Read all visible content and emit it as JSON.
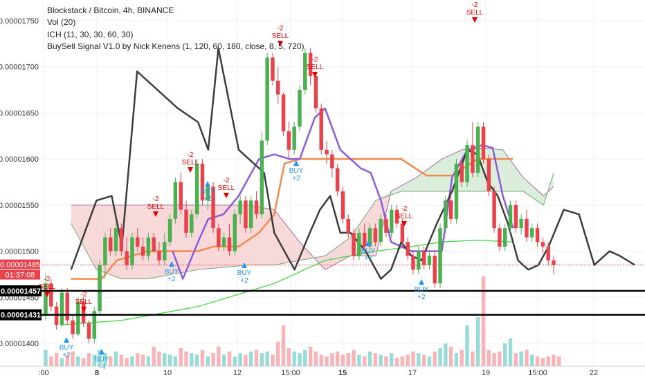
{
  "legend": {
    "title": "Blockstack / Bitcoin, 4h, BINANCE",
    "vol": "Vol (20)",
    "ich": "ICH (11, 30, 30, 60, 30)",
    "buysell": "BuySell Signal V1.0 by Nick Kenens (1, 120, 60, 180, close, 8, 5, 720)"
  },
  "colors": {
    "up": "#4caf50",
    "down": "#e8424c",
    "lagging": "#3c3c3c",
    "conversion": "#8e5ad8",
    "base": "#f28a4c",
    "ema": "#4cd94c",
    "cloud_bear": "#f6cccc",
    "cloud_bull": "#cfe8cf",
    "buy": "#2196f3",
    "sell": "#e30000"
  },
  "price_axis": {
    "ticks": [
      "0.00001750",
      "0.00001700",
      "0.00001650",
      "0.00001600",
      "0.00001550",
      "0.00001500",
      "0.00001450",
      "0.00001400"
    ],
    "last_price": "0.00001485",
    "countdown": "01:37:08",
    "level1": "0.00001457",
    "level2": "0.00001431"
  },
  "time_axis": {
    "ticks": [
      {
        "label": ":00",
        "bold": false
      },
      {
        "label": "8",
        "bold": true
      },
      {
        "label": "10",
        "bold": false
      },
      {
        "label": "12",
        "bold": false
      },
      {
        "label": "15:00",
        "bold": false
      },
      {
        "label": "15",
        "bold": true
      },
      {
        "label": "17",
        "bold": false
      },
      {
        "label": "19",
        "bold": false
      },
      {
        "label": "15:00",
        "bold": false
      },
      {
        "label": "22",
        "bold": false
      }
    ]
  },
  "signals": [
    {
      "type": "sell",
      "count": "-2",
      "label": "SELL"
    },
    {
      "type": "sell",
      "count": "-2",
      "label": "SELL"
    },
    {
      "type": "sell",
      "count": "-2",
      "label": "SELL"
    },
    {
      "type": "sell",
      "count": "-2",
      "label": "SELL"
    },
    {
      "type": "sell",
      "count": "-2",
      "label": "SELL"
    },
    {
      "type": "sell",
      "count": "-2",
      "label": "SELL"
    },
    {
      "type": "sell",
      "count": "-2",
      "label": "SELL"
    },
    {
      "type": "sell",
      "count": "-2",
      "label": "SELL"
    },
    {
      "type": "sell",
      "count": "-2",
      "label": "SELL"
    },
    {
      "type": "buy",
      "count": "+2",
      "label": "BUY"
    },
    {
      "type": "buy",
      "count": "+2",
      "label": "BUY"
    },
    {
      "type": "buy",
      "count": "+4",
      "label": "BUY"
    },
    {
      "type": "buy",
      "count": "+2",
      "label": "BUY"
    },
    {
      "type": "buy",
      "count": "+2",
      "label": "BUY"
    },
    {
      "type": "buy",
      "count": "+2",
      "label": "BUY"
    },
    {
      "type": "buy",
      "count": "+2",
      "label": "BUY"
    },
    {
      "type": "buy",
      "count": "+2",
      "label": "BUY"
    }
  ],
  "chart_data": {
    "type": "candlestick",
    "title": "Blockstack / Bitcoin, 4h, BINANCE",
    "ylim": [
      1.38e-05,
      1.762e-05
    ],
    "candles": [
      [
        1.43e-05,
        1.475e-05,
        1.425e-05,
        1.465e-05
      ],
      [
        1.465e-05,
        1.47e-05,
        1.435e-05,
        1.44e-05
      ],
      [
        1.44e-05,
        1.445e-05,
        1.415e-05,
        1.42e-05
      ],
      [
        1.42e-05,
        1.46e-05,
        1.418e-05,
        1.455e-05
      ],
      [
        1.455e-05,
        1.46e-05,
        1.42e-05,
        1.425e-05
      ],
      [
        1.425e-05,
        1.43e-05,
        1.405e-05,
        1.41e-05
      ],
      [
        1.41e-05,
        1.45e-05,
        1.408e-05,
        1.445e-05
      ],
      [
        1.445e-05,
        1.45e-05,
        1.418e-05,
        1.422e-05
      ],
      [
        1.422e-05,
        1.425e-05,
        1.4e-05,
        1.405e-05
      ],
      [
        1.405e-05,
        1.44e-05,
        1.4e-05,
        1.435e-05
      ],
      [
        1.435e-05,
        1.49e-05,
        1.43e-05,
        1.485e-05
      ],
      [
        1.485e-05,
        1.52e-05,
        1.47e-05,
        1.515e-05
      ],
      [
        1.515e-05,
        1.525e-05,
        1.495e-05,
        1.5e-05
      ],
      [
        1.5e-05,
        1.53e-05,
        1.495e-05,
        1.525e-05
      ],
      [
        1.525e-05,
        1.53e-05,
        1.495e-05,
        1.5e-05
      ],
      [
        1.5e-05,
        1.515e-05,
        1.48e-05,
        1.485e-05
      ],
      [
        1.485e-05,
        1.52e-05,
        1.48e-05,
        1.515e-05
      ],
      [
        1.515e-05,
        1.525e-05,
        1.5e-05,
        1.505e-05
      ],
      [
        1.505e-05,
        1.515e-05,
        1.49e-05,
        1.495e-05
      ],
      [
        1.495e-05,
        1.52e-05,
        1.49e-05,
        1.515e-05
      ],
      [
        1.515e-05,
        1.52e-05,
        1.498e-05,
        1.5e-05
      ],
      [
        1.5e-05,
        1.51e-05,
        1.485e-05,
        1.49e-05
      ],
      [
        1.49e-05,
        1.52e-05,
        1.485e-05,
        1.51e-05
      ],
      [
        1.51e-05,
        1.54e-05,
        1.505e-05,
        1.535e-05
      ],
      [
        1.535e-05,
        1.58e-05,
        1.53e-05,
        1.575e-05
      ],
      [
        1.575e-05,
        1.585e-05,
        1.54e-05,
        1.545e-05
      ],
      [
        1.545e-05,
        1.555e-05,
        1.515e-05,
        1.52e-05
      ],
      [
        1.52e-05,
        1.545e-05,
        1.515e-05,
        1.54e-05
      ],
      [
        1.54e-05,
        1.6e-05,
        1.535e-05,
        1.595e-05
      ],
      [
        1.595e-05,
        1.6e-05,
        1.55e-05,
        1.555e-05
      ],
      [
        1.555e-05,
        1.575e-05,
        1.545e-05,
        1.57e-05
      ],
      [
        1.57e-05,
        1.575e-05,
        1.52e-05,
        1.525e-05
      ],
      [
        1.525e-05,
        1.53e-05,
        1.5e-05,
        1.505e-05
      ],
      [
        1.505e-05,
        1.52e-05,
        1.5e-05,
        1.515e-05
      ],
      [
        1.515e-05,
        1.53e-05,
        1.495e-05,
        1.5e-05
      ],
      [
        1.5e-05,
        1.545e-05,
        1.495e-05,
        1.54e-05
      ],
      [
        1.54e-05,
        1.56e-05,
        1.53e-05,
        1.555e-05
      ],
      [
        1.555e-05,
        1.56e-05,
        1.52e-05,
        1.525e-05
      ],
      [
        1.525e-05,
        1.56e-05,
        1.52e-05,
        1.555e-05
      ],
      [
        1.555e-05,
        1.565e-05,
        1.535e-05,
        1.54e-05
      ],
      [
        1.54e-05,
        1.63e-05,
        1.535e-05,
        1.62e-05
      ],
      [
        1.62e-05,
        1.715e-05,
        1.615e-05,
        1.71e-05
      ],
      [
        1.71e-05,
        1.715e-05,
        1.68e-05,
        1.685e-05
      ],
      [
        1.685e-05,
        1.7e-05,
        1.66e-05,
        1.67e-05
      ],
      [
        1.67e-05,
        1.672e-05,
        1.625e-05,
        1.63e-05
      ],
      [
        1.63e-05,
        1.64e-05,
        1.6e-05,
        1.61e-05
      ],
      [
        1.61e-05,
        1.64e-05,
        1.605e-05,
        1.635e-05
      ],
      [
        1.635e-05,
        1.68e-05,
        1.63e-05,
        1.675e-05
      ],
      [
        1.675e-05,
        1.72e-05,
        1.67e-05,
        1.715e-05
      ],
      [
        1.715e-05,
        1.72e-05,
        1.68e-05,
        1.69e-05
      ],
      [
        1.69e-05,
        1.695e-05,
        1.65e-05,
        1.655e-05
      ],
      [
        1.655e-05,
        1.66e-05,
        1.605e-05,
        1.61e-05
      ],
      [
        1.61e-05,
        1.62e-05,
        1.595e-05,
        1.605e-05
      ],
      [
        1.605e-05,
        1.61e-05,
        1.58e-05,
        1.59e-05
      ],
      [
        1.59e-05,
        1.595e-05,
        1.56e-05,
        1.565e-05
      ],
      [
        1.565e-05,
        1.57e-05,
        1.53e-05,
        1.535e-05
      ],
      [
        1.535e-05,
        1.54e-05,
        1.515e-05,
        1.52e-05
      ],
      [
        1.52e-05,
        1.525e-05,
        1.49e-05,
        1.495e-05
      ],
      [
        1.495e-05,
        1.525e-05,
        1.49e-05,
        1.52e-05
      ],
      [
        1.52e-05,
        1.53e-05,
        1.5e-05,
        1.505e-05
      ],
      [
        1.505e-05,
        1.53e-05,
        1.5e-05,
        1.525e-05
      ],
      [
        1.525e-05,
        1.53e-05,
        1.505e-05,
        1.51e-05
      ],
      [
        1.51e-05,
        1.54e-05,
        1.505e-05,
        1.535e-05
      ],
      [
        1.535e-05,
        1.54e-05,
        1.515e-05,
        1.52e-05
      ],
      [
        1.52e-05,
        1.55e-05,
        1.515e-05,
        1.545e-05
      ],
      [
        1.545e-05,
        1.55e-05,
        1.525e-05,
        1.53e-05
      ],
      [
        1.53e-05,
        1.535e-05,
        1.505e-05,
        1.51e-05
      ],
      [
        1.51e-05,
        1.515e-05,
        1.49e-05,
        1.495e-05
      ],
      [
        1.495e-05,
        1.5e-05,
        1.475e-05,
        1.48e-05
      ],
      [
        1.48e-05,
        1.505e-05,
        1.475e-05,
        1.5e-05
      ],
      [
        1.5e-05,
        1.505e-05,
        1.48e-05,
        1.485e-05
      ],
      [
        1.485e-05,
        1.5e-05,
        1.48e-05,
        1.495e-05
      ],
      [
        1.495e-05,
        1.5e-05,
        1.46e-05,
        1.465e-05
      ],
      [
        1.465e-05,
        1.53e-05,
        1.46e-05,
        1.525e-05
      ],
      [
        1.525e-05,
        1.56e-05,
        1.52e-05,
        1.555e-05
      ],
      [
        1.555e-05,
        1.56e-05,
        1.53e-05,
        1.535e-05
      ],
      [
        1.535e-05,
        1.6e-05,
        1.53e-05,
        1.595e-05
      ],
      [
        1.595e-05,
        1.6e-05,
        1.57e-05,
        1.575e-05
      ],
      [
        1.575e-05,
        1.62e-05,
        1.57e-05,
        1.615e-05
      ],
      [
        1.615e-05,
        1.64e-05,
        1.58e-05,
        1.585e-05
      ],
      [
        1.585e-05,
        1.64e-05,
        1.58e-05,
        1.635e-05
      ],
      [
        1.635e-05,
        1.64e-05,
        1.595e-05,
        1.6e-05
      ],
      [
        1.6e-05,
        1.605e-05,
        1.56e-05,
        1.565e-05
      ],
      [
        1.565e-05,
        1.57e-05,
        1.52e-05,
        1.525e-05
      ],
      [
        1.525e-05,
        1.53e-05,
        1.5e-05,
        1.505e-05
      ],
      [
        1.505e-05,
        1.53e-05,
        1.5e-05,
        1.525e-05
      ],
      [
        1.525e-05,
        1.555e-05,
        1.52e-05,
        1.55e-05
      ],
      [
        1.55e-05,
        1.555e-05,
        1.52e-05,
        1.525e-05
      ],
      [
        1.525e-05,
        1.54e-05,
        1.518e-05,
        1.535e-05
      ],
      [
        1.535e-05,
        1.545e-05,
        1.51e-05,
        1.515e-05
      ],
      [
        1.515e-05,
        1.53e-05,
        1.51e-05,
        1.525e-05
      ],
      [
        1.525e-05,
        1.53e-05,
        1.505e-05,
        1.51e-05
      ],
      [
        1.51e-05,
        1.515e-05,
        1.498e-05,
        1.505e-05
      ],
      [
        1.505e-05,
        1.51e-05,
        1.485e-05,
        1.49e-05
      ],
      [
        1.49e-05,
        1.495e-05,
        1.475e-05,
        1.485e-05
      ]
    ],
    "volume": [
      10,
      6,
      8,
      5,
      7,
      9,
      6,
      5,
      8,
      7,
      10,
      8,
      6,
      9,
      7,
      5,
      6,
      8,
      7,
      6,
      12,
      9,
      8,
      7,
      6,
      11,
      9,
      8,
      7,
      10,
      6,
      8,
      12,
      7,
      9,
      6,
      8,
      7,
      9,
      10,
      8,
      9,
      7,
      15,
      25,
      11,
      9,
      8,
      10,
      12,
      9,
      7,
      6,
      8,
      9,
      7,
      8,
      10,
      7,
      6,
      9,
      8,
      7,
      6,
      8,
      5,
      6,
      7,
      9,
      8,
      7,
      6,
      9,
      11,
      14,
      12,
      8,
      10,
      25,
      9,
      30,
      55,
      10,
      8,
      9,
      14,
      17,
      8,
      9,
      10,
      7,
      6,
      5,
      6,
      7,
      6
    ],
    "lagging_span": [
      [
        0.05,
        1.48e-05
      ],
      [
        0.1,
        1.555e-05
      ],
      [
        0.13,
        1.56e-05
      ],
      [
        0.15,
        1.505e-05
      ],
      [
        0.18,
        1.695e-05
      ],
      [
        0.22,
        1.675e-05
      ],
      [
        0.26,
        1.655e-05
      ],
      [
        0.3,
        1.64e-05
      ],
      [
        0.32,
        1.61e-05
      ],
      [
        0.34,
        1.72e-05
      ],
      [
        0.38,
        1.61e-05
      ],
      [
        0.41,
        1.595e-05
      ],
      [
        0.43,
        1.585e-05
      ],
      [
        0.45,
        1.52e-05
      ],
      [
        0.47,
        1.5e-05
      ],
      [
        0.49,
        1.48e-05
      ],
      [
        0.52,
        1.52e-05
      ],
      [
        0.54,
        1.545e-05
      ],
      [
        0.56,
        1.56e-05
      ],
      [
        0.58,
        1.52e-05
      ],
      [
        0.6,
        1.52e-05
      ],
      [
        0.63,
        1.5e-05
      ],
      [
        0.66,
        1.47e-05
      ],
      [
        0.68,
        1.48e-05
      ],
      [
        0.7,
        1.51e-05
      ],
      [
        0.72,
        1.495e-05
      ],
      [
        0.74,
        1.49e-05
      ],
      [
        0.77,
        1.53e-05
      ],
      [
        0.8,
        1.565e-05
      ],
      [
        0.83,
        1.61e-05
      ],
      [
        0.85,
        1.605e-05
      ],
      [
        0.87,
        1.575e-05
      ],
      [
        0.89,
        1.56e-05
      ],
      [
        0.91,
        1.53e-05
      ],
      [
        0.93,
        1.49e-05
      ],
      [
        0.95,
        1.48e-05
      ],
      [
        0.97,
        1.485e-05
      ],
      [
        0.99,
        1.505e-05
      ],
      [
        1.02,
        1.545e-05
      ],
      [
        1.05,
        1.54e-05
      ],
      [
        1.08,
        1.485e-05
      ],
      [
        1.11,
        1.5e-05
      ],
      [
        1.13,
        1.495e-05
      ],
      [
        1.16,
        1.485e-05
      ]
    ],
    "conversion_line": [
      [
        0.25,
        1.5e-05
      ],
      [
        0.27,
        1.47e-05
      ],
      [
        0.3,
        1.51e-05
      ],
      [
        0.32,
        1.535e-05
      ],
      [
        0.35,
        1.54e-05
      ],
      [
        0.38,
        1.56e-05
      ],
      [
        0.42,
        1.6e-05
      ],
      [
        0.45,
        1.605e-05
      ],
      [
        0.48,
        1.6e-05
      ],
      [
        0.5,
        1.6e-05
      ],
      [
        0.53,
        1.645e-05
      ],
      [
        0.55,
        1.655e-05
      ],
      [
        0.58,
        1.61e-05
      ],
      [
        0.6,
        1.6e-05
      ],
      [
        0.62,
        1.59e-05
      ],
      [
        0.64,
        1.585e-05
      ],
      [
        0.66,
        1.555e-05
      ],
      [
        0.68,
        1.51e-05
      ],
      [
        0.7,
        1.505e-05
      ],
      [
        0.72,
        1.5e-05
      ],
      [
        0.75,
        1.5e-05
      ],
      [
        0.78,
        1.5e-05
      ],
      [
        0.8,
        1.58e-05
      ],
      [
        0.83,
        1.61e-05
      ],
      [
        0.86,
        1.615e-05
      ],
      [
        0.88,
        1.612e-05
      ],
      [
        0.9,
        1.56e-05
      ],
      [
        0.92,
        1.525e-05
      ]
    ],
    "base_line": [
      [
        0.05,
        1.47e-05
      ],
      [
        0.11,
        1.47e-05
      ],
      [
        0.14,
        1.49e-05
      ],
      [
        0.17,
        1.495e-05
      ],
      [
        0.2,
        1.5e-05
      ],
      [
        0.25,
        1.5e-05
      ],
      [
        0.3,
        1.5e-05
      ],
      [
        0.33,
        1.505e-05
      ],
      [
        0.38,
        1.505e-05
      ],
      [
        0.42,
        1.52e-05
      ],
      [
        0.45,
        1.54e-05
      ],
      [
        0.47,
        1.595e-05
      ],
      [
        0.5,
        1.6e-05
      ],
      [
        0.55,
        1.6e-05
      ],
      [
        0.6,
        1.6e-05
      ],
      [
        0.63,
        1.6e-05
      ],
      [
        0.65,
        1.6e-05
      ],
      [
        0.7,
        1.6e-05
      ],
      [
        0.75,
        1.582e-05
      ],
      [
        0.8,
        1.582e-05
      ],
      [
        0.85,
        1.6e-05
      ],
      [
        0.9,
        1.6e-05
      ],
      [
        0.92,
        1.6e-05
      ]
    ],
    "ema": [
      [
        0.03,
        1.42e-05
      ],
      [
        0.15,
        1.425e-05
      ],
      [
        0.3,
        1.44e-05
      ],
      [
        0.45,
        1.465e-05
      ],
      [
        0.55,
        1.49e-05
      ],
      [
        0.65,
        1.5e-05
      ],
      [
        0.72,
        1.505e-05
      ],
      [
        0.78,
        1.51e-05
      ],
      [
        0.85,
        1.512e-05
      ],
      [
        0.92,
        1.51e-05
      ]
    ],
    "cloud_span_a": [
      [
        0.05,
        1.55e-05
      ],
      [
        0.1,
        1.55e-05
      ],
      [
        0.2,
        1.55e-05
      ],
      [
        0.3,
        1.55e-05
      ],
      [
        0.4,
        1.55e-05
      ],
      [
        0.45,
        1.545e-05
      ],
      [
        0.5,
        1.51e-05
      ],
      [
        0.55,
        1.48e-05
      ],
      [
        0.6,
        1.495e-05
      ],
      [
        0.65,
        1.495e-05
      ],
      [
        0.68,
        1.565e-05
      ],
      [
        0.73,
        1.58e-05
      ],
      [
        0.78,
        1.6e-05
      ],
      [
        0.82,
        1.61e-05
      ],
      [
        0.86,
        1.612e-05
      ],
      [
        0.9,
        1.61e-05
      ],
      [
        0.94,
        1.58e-05
      ],
      [
        0.98,
        1.56e-05
      ],
      [
        1.0,
        1.57e-05
      ]
    ],
    "cloud_span_b": [
      [
        0.05,
        1.53e-05
      ],
      [
        0.1,
        1.48e-05
      ],
      [
        0.15,
        1.47e-05
      ],
      [
        0.2,
        1.47e-05
      ],
      [
        0.3,
        1.48e-05
      ],
      [
        0.4,
        1.485e-05
      ],
      [
        0.45,
        1.485e-05
      ],
      [
        0.5,
        1.49e-05
      ],
      [
        0.55,
        1.495e-05
      ],
      [
        0.6,
        1.515e-05
      ],
      [
        0.65,
        1.555e-05
      ],
      [
        0.7,
        1.565e-05
      ],
      [
        0.75,
        1.565e-05
      ],
      [
        0.8,
        1.565e-05
      ],
      [
        0.85,
        1.565e-05
      ],
      [
        0.9,
        1.565e-05
      ],
      [
        0.94,
        1.565e-05
      ],
      [
        0.98,
        1.55e-05
      ],
      [
        1.0,
        1.585e-05
      ]
    ]
  }
}
